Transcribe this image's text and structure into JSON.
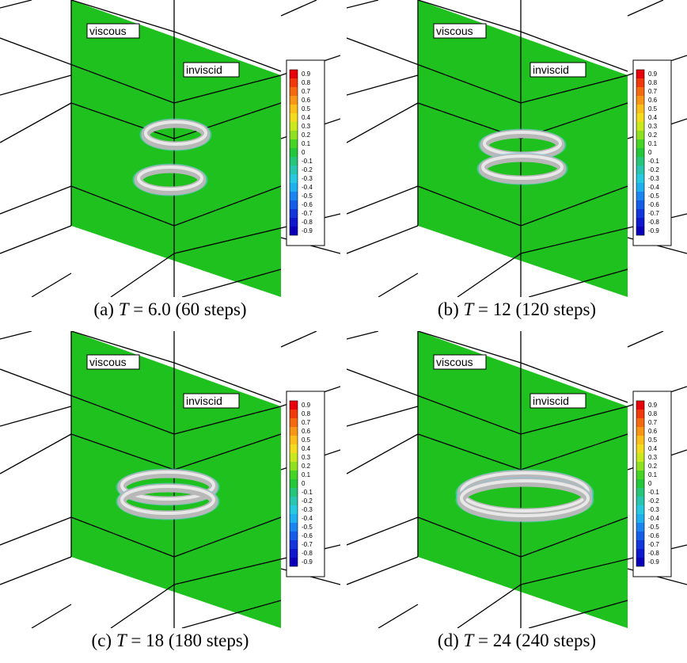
{
  "labels": {
    "viscous": "viscous",
    "inviscid": "inviscid"
  },
  "colorbar": {
    "ticks": [
      0.9,
      0.8,
      0.7,
      0.6,
      0.5,
      0.4,
      0.3,
      0.2,
      0.1,
      0,
      -0.1,
      -0.2,
      -0.3,
      -0.4,
      -0.5,
      -0.6,
      -0.7,
      -0.8,
      -0.9
    ]
  },
  "panels": [
    {
      "label": "(a)",
      "variable": "T",
      "time": "= 6.0",
      "steps": "(60 steps)"
    },
    {
      "label": "(b)",
      "variable": "T",
      "time": "= 12",
      "steps": "(120 steps)"
    },
    {
      "label": "(c)",
      "variable": "T",
      "time": "= 18",
      "steps": "(180 steps)"
    },
    {
      "label": "(d)",
      "variable": "T",
      "time": "= 24",
      "steps": "(240 steps)"
    }
  ]
}
